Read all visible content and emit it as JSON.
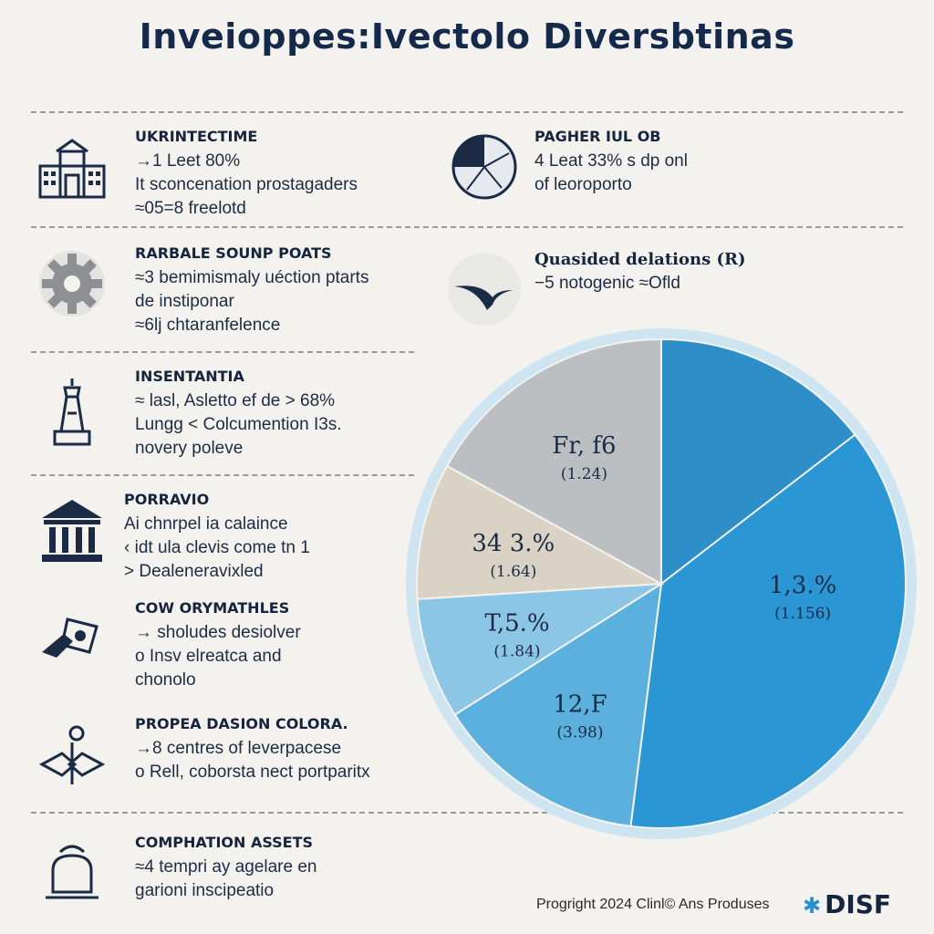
{
  "title": "Inveioppes:Ivectolo Diversbtinas",
  "left_items": [
    {
      "icon": "bank-building-icon",
      "heading": "UKRINTECTIME",
      "lines": [
        "→1 Leet 80%",
        "It sconcenation prostagaders",
        "≈05=8 freelotd"
      ]
    },
    {
      "icon": "gear-cog-icon",
      "heading": "RARBALE SOUNP POATS",
      "lines": [
        "≈3 bemimismaly uéction ptarts",
        "de instiponar",
        "≈6lj chtaranfelence"
      ]
    },
    {
      "icon": "tower-monument-icon",
      "heading": "INSENTANTIA",
      "lines": [
        "≈ lasl, Asletto ef de > 68%",
        "Lungg < Colcumention I3s.",
        "novery poleve"
      ]
    },
    {
      "icon": "courthouse-columns-icon",
      "heading": "PORRAVIO",
      "lines": [
        "Ai chnrpel ia calaince",
        "‹ idt ula clevis come tn 1",
        "> Dealeneravixled"
      ]
    },
    {
      "icon": "hand-money-icon",
      "heading": "COW ORYMATHLES",
      "lines": [
        "→ sholudes desiolver",
        "o Insv elreatca and",
        "chonolo"
      ]
    },
    {
      "icon": "handshake-icon",
      "heading": "PROPEA DASION COLORA.",
      "lines": [
        "→8 centres of leverpacese",
        "o Rell, coborsta nect portparitx"
      ]
    },
    {
      "icon": "money-bag-icon",
      "heading": "COMPHATION ASSETS",
      "lines": [
        "≈4 tempri ay agelare en",
        "garioni inscipeatio"
      ]
    }
  ],
  "right_items": [
    {
      "icon": "pie-gauge-icon",
      "heading": "PAGHER IUL OB",
      "lines": [
        "4 Leat 33% s dp onl",
        "of leoroporto"
      ]
    },
    {
      "icon": "plane-icon",
      "heading": "Quasided delations (R)",
      "lines": [
        "−5 notogenic ≈Ofld"
      ]
    }
  ],
  "chart_data": {
    "type": "pie",
    "slices": [
      {
        "label": "1,3.%",
        "sub": "(1.156)",
        "value": 52,
        "color": "#2a96d4"
      },
      {
        "label": "12,F",
        "sub": "(3.98)",
        "value": 14,
        "color": "#5cb0dd"
      },
      {
        "label": "T,5.%",
        "sub": "(1.84)",
        "value": 8,
        "color": "#8cc6e6"
      },
      {
        "label": "34 3.%",
        "sub": "(1.64)",
        "value": 9,
        "color": "#d9d2c5"
      },
      {
        "label": "Fr, f6",
        "sub": "(1.24)",
        "value": 17,
        "color": "#bcbfc2"
      }
    ],
    "extra_slice_color": "#2e8ec8"
  },
  "footer": {
    "copyright": "Progright 2024 Clinl© Ans Produses",
    "brand": "DISF"
  }
}
